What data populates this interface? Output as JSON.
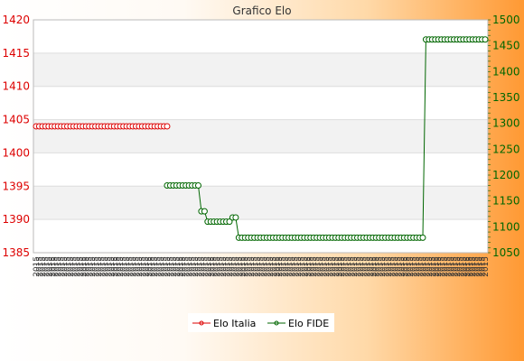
{
  "chart_data": {
    "type": "line",
    "title": "Grafico Elo",
    "y_left": {
      "min": 1385,
      "max": 1420,
      "ticks": [
        1385,
        1390,
        1395,
        1400,
        1405,
        1410,
        1415,
        1420
      ]
    },
    "y_right": {
      "min": 1050,
      "max": 1500,
      "ticks": [
        1050,
        1100,
        1150,
        1200,
        1250,
        1300,
        1350,
        1400,
        1450,
        1500
      ]
    },
    "grid": true,
    "legend_position": "bottom",
    "x_label_text": "2015",
    "x_count": 145,
    "series": [
      {
        "name": "Elo Italia",
        "axis": "left",
        "color": "#dd0000",
        "from": 0,
        "to": 42,
        "constant": 1404
      },
      {
        "name": "Elo FIDE",
        "axis": "right",
        "color": "#006600",
        "from": 42,
        "to": 144,
        "segments": [
          {
            "from": 42,
            "to": 52,
            "value": 1180
          },
          {
            "from": 53,
            "to": 54,
            "value": 1130
          },
          {
            "from": 55,
            "to": 62,
            "value": 1110
          },
          {
            "from": 63,
            "to": 64,
            "value": 1118
          },
          {
            "from": 65,
            "to": 124,
            "value": 1079
          },
          {
            "from": 125,
            "to": 144,
            "value": 1462
          }
        ]
      }
    ]
  }
}
